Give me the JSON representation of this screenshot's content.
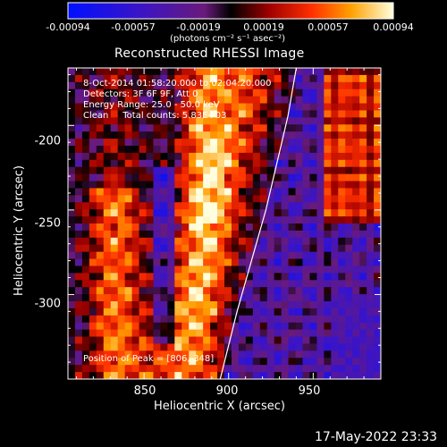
{
  "colorbar": {
    "ticks": [
      "-0.00094",
      "-0.00057",
      "-0.00019",
      "0.00019",
      "0.00057",
      "0.00094"
    ],
    "units_label": "(photons cm⁻² s⁻¹ asec⁻²)"
  },
  "chart_data": {
    "type": "heatmap",
    "title": "Reconstructed RHESSI Image",
    "xlabel": "Heliocentric X (arcsec)",
    "ylabel": "Heliocentric Y (arcsec)",
    "xlim": [
      805,
      990
    ],
    "ylim": [
      -350,
      -166
    ],
    "x_ticks": [
      "850",
      "900",
      "950"
    ],
    "x_tick_values": [
      850,
      900,
      950
    ],
    "y_ticks": [
      "-200",
      "-250",
      "-300"
    ],
    "y_tick_values": [
      -200,
      -250,
      -300
    ],
    "colorbar_range": [
      -0.00094,
      0.00094
    ],
    "colormap": "blue-purple-red-orange-yellow-white",
    "annotations": [
      "8-Oct-2014 01:58:20.000 to 02:04:20.000",
      "Detectors: 3F 6F 9F, Att 0",
      "Energy Range: 25.0 - 50.0 keV",
      "Clean     Total counts: 5.83E+03"
    ],
    "peak_label": "Position of Peak = [806,-348]",
    "limb_points": [
      [
        940,
        -166
      ],
      [
        935,
        -195
      ],
      [
        922,
        -250
      ],
      [
        905,
        -310
      ],
      [
        895,
        -350
      ]
    ]
  },
  "timestamp": "17-May-2022 23:33"
}
